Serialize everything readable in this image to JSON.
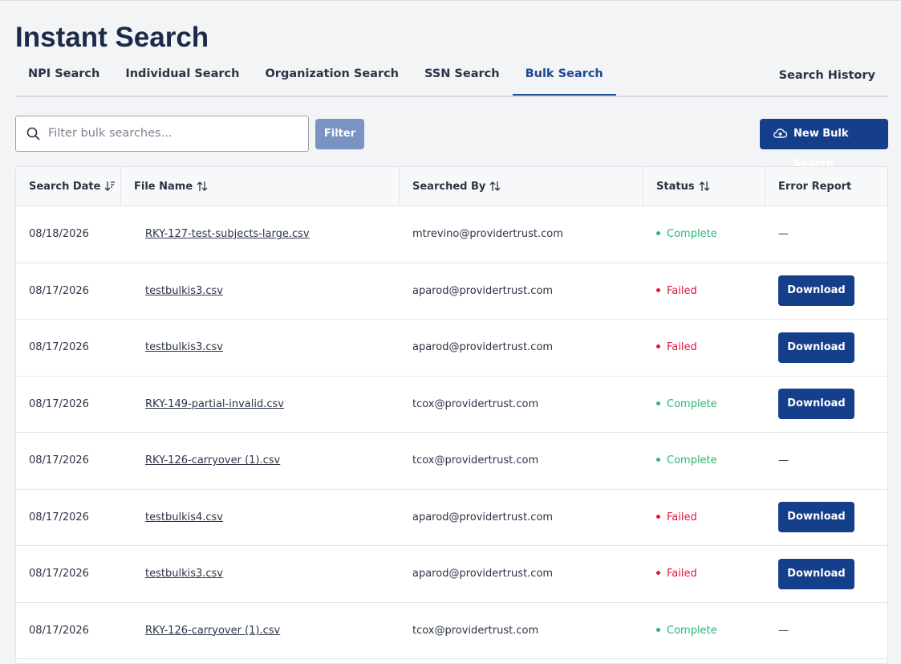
{
  "header": {
    "title": "Instant Search"
  },
  "tabs": [
    {
      "label": "NPI Search",
      "active": false
    },
    {
      "label": "Individual Search",
      "active": false
    },
    {
      "label": "Organization Search",
      "active": false
    },
    {
      "label": "SSN Search",
      "active": false
    },
    {
      "label": "Bulk Search",
      "active": true
    }
  ],
  "search_history": "Search History",
  "filter": {
    "placeholder": "Filter bulk searches...",
    "button": "Filter"
  },
  "new_button": "New Bulk Search",
  "table": {
    "columns": [
      "Search Date",
      "File Name",
      "Searched By",
      "Status",
      "Error Report"
    ],
    "rows": [
      {
        "date": "08/18/2026",
        "file": "RKY-127-test-subjects-large.csv",
        "by": "mtrevino@providertrust.com",
        "status": {
          "label": "Complete",
          "color": "#2bb673"
        },
        "error": {
          "label": "—",
          "button": false
        }
      },
      {
        "date": "08/17/2026",
        "file": "testbulkis3.csv",
        "by": "aparod@providertrust.com",
        "status": {
          "label": "Failed",
          "color": "#e0143c"
        },
        "error": {
          "label": "Download",
          "button": true
        }
      },
      {
        "date": "08/17/2026",
        "file": "testbulkis3.csv",
        "by": "aparod@providertrust.com",
        "status": {
          "label": "Failed",
          "color": "#e0143c"
        },
        "error": {
          "label": "Download",
          "button": true
        }
      },
      {
        "date": "08/17/2026",
        "file": "RKY-149-partial-invalid.csv",
        "by": "tcox@providertrust.com",
        "status": {
          "label": "Complete",
          "color": "#2bb673"
        },
        "error": {
          "label": "Download",
          "button": true
        }
      },
      {
        "date": "08/17/2026",
        "file": "RKY-126-carryover (1).csv",
        "by": "tcox@providertrust.com",
        "status": {
          "label": "Complete",
          "color": "#2bb673"
        },
        "error": {
          "label": "—",
          "button": false
        }
      },
      {
        "date": "08/17/2026",
        "file": "testbulkis4.csv",
        "by": "aparod@providertrust.com",
        "status": {
          "label": "Failed",
          "color": "#e0143c"
        },
        "error": {
          "label": "Download",
          "button": true
        }
      },
      {
        "date": "08/17/2026",
        "file": "testbulkis3.csv",
        "by": "aparod@providertrust.com",
        "status": {
          "label": "Failed",
          "color": "#e0143c"
        },
        "error": {
          "label": "Download",
          "button": true
        }
      },
      {
        "date": "08/17/2026",
        "file": "RKY-126-carryover (1).csv",
        "by": "tcox@providertrust.com",
        "status": {
          "label": "Complete",
          "color": "#2bb673"
        },
        "error": {
          "label": "—",
          "button": false
        }
      }
    ]
  }
}
